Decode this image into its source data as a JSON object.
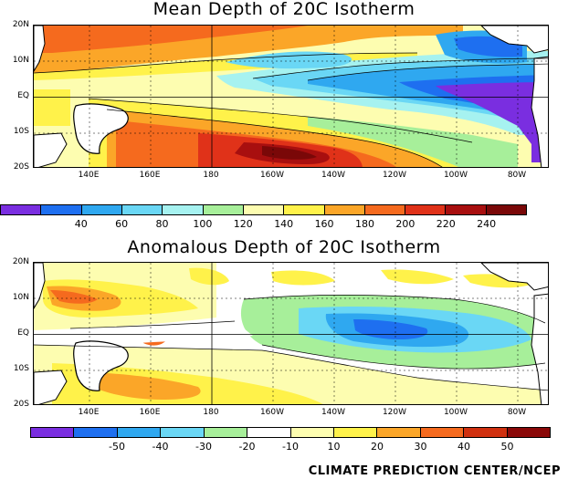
{
  "top_panel": {
    "title": "Mean Depth of 20C Isotherm",
    "lat_labels": [
      "20N",
      "10N",
      "EQ",
      "10S",
      "20S"
    ],
    "lon_labels": [
      "140E",
      "160E",
      "180",
      "160W",
      "140W",
      "120W",
      "100W",
      "80W"
    ],
    "colorbar": {
      "colors": [
        "#7a2ee0",
        "#1e6ff0",
        "#2fa8f0",
        "#6ad7f5",
        "#a6f2f0",
        "#a7ef9a",
        "#fdfdb0",
        "#fff24a",
        "#fba628",
        "#f56a1e",
        "#e03219",
        "#a80f0f",
        "#7a0808"
      ],
      "labels": [
        "40",
        "60",
        "80",
        "100",
        "120",
        "140",
        "160",
        "180",
        "200",
        "220",
        "240"
      ]
    }
  },
  "bottom_panel": {
    "title": "Anomalous Depth of 20C Isotherm",
    "lat_labels": [
      "20N",
      "10N",
      "EQ",
      "10S",
      "20S"
    ],
    "lon_labels": [
      "140E",
      "160E",
      "180",
      "160W",
      "140W",
      "120W",
      "100W",
      "80W"
    ],
    "colorbar": {
      "colors": [
        "#7a2ee0",
        "#1e6ff0",
        "#2fa8f0",
        "#6ad7f5",
        "#a7ef9a",
        "#ffffff",
        "#fdfdb0",
        "#fff24a",
        "#fba628",
        "#f56a1e",
        "#d0300f",
        "#8a0808"
      ],
      "labels": [
        "-50",
        "-40",
        "-30",
        "-20",
        "-10",
        "10",
        "20",
        "30",
        "40",
        "50"
      ]
    }
  },
  "credit": "CLIMATE PREDICTION CENTER/NCEP"
}
